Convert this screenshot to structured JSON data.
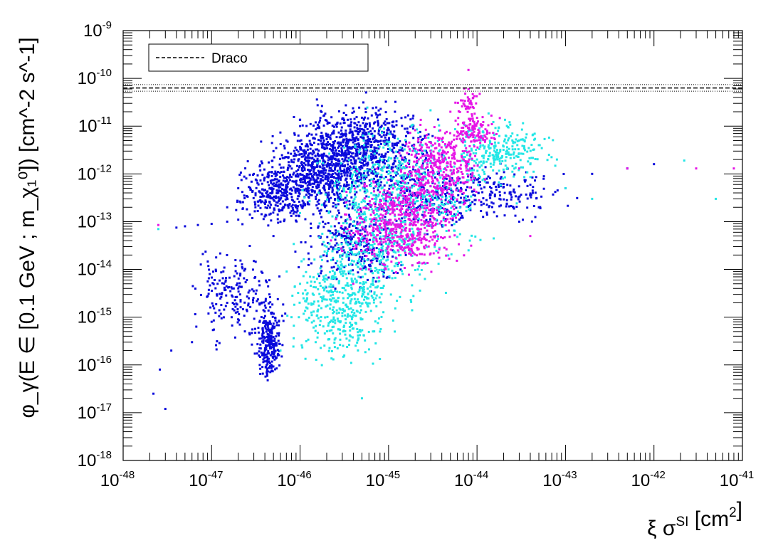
{
  "chart_data": {
    "type": "scatter",
    "xscale": "log",
    "yscale": "log",
    "xlim": [
      1e-48,
      1e-41
    ],
    "ylim": [
      1e-18,
      1e-09
    ],
    "grid": false,
    "legend_position": "top-left",
    "xlabel": "ξ σ^SI [cm^2]",
    "ylabel": "φ_γ(E ∈ [0.1 GeV ; m_χ₁⁰]) [cm^-2 s^-1]",
    "x_ticks": [
      {
        "base": "10",
        "exp": "-48"
      },
      {
        "base": "10",
        "exp": "-47"
      },
      {
        "base": "10",
        "exp": "-46"
      },
      {
        "base": "10",
        "exp": "-45"
      },
      {
        "base": "10",
        "exp": "-44"
      },
      {
        "base": "10",
        "exp": "-43"
      },
      {
        "base": "10",
        "exp": "-42"
      },
      {
        "base": "10",
        "exp": "-41"
      }
    ],
    "y_ticks": [
      {
        "base": "10",
        "exp": "-18"
      },
      {
        "base": "10",
        "exp": "-17"
      },
      {
        "base": "10",
        "exp": "-16"
      },
      {
        "base": "10",
        "exp": "-15"
      },
      {
        "base": "10",
        "exp": "-14"
      },
      {
        "base": "10",
        "exp": "-13"
      },
      {
        "base": "10",
        "exp": "-12"
      },
      {
        "base": "10",
        "exp": "-11"
      },
      {
        "base": "10",
        "exp": "-10"
      },
      {
        "base": "10",
        "exp": "-9"
      }
    ],
    "reference_lines": [
      {
        "name": "Draco",
        "y": 6.3e-11,
        "style": "dashed",
        "band": [
          5.4e-11,
          7.4e-11
        ]
      }
    ],
    "series": [
      {
        "color": "#0a0adc",
        "points": [
          [
            2.2e-48,
            2.5e-17
          ],
          [
            2.6e-48,
            8e-17
          ],
          [
            3e-48,
            1.2e-17
          ],
          [
            3.5e-48,
            2e-16
          ],
          [
            4e-48,
            7.5e-14
          ],
          [
            5e-48,
            8e-14
          ],
          [
            7e-48,
            8.5e-14
          ],
          [
            1e-47,
            9e-14
          ],
          [
            1.5e-47,
            1e-13
          ],
          [
            2e-47,
            1.1e-13
          ],
          [
            6e-48,
            3e-16
          ],
          [
            1e-47,
            8e-16
          ],
          [
            1.5e-47,
            2e-15
          ],
          [
            2e-47,
            4e-15
          ],
          [
            2.5e-47,
            6e-15
          ],
          [
            3e-47,
            1.5e-14
          ],
          [
            1.5e-47,
            2e-13
          ],
          [
            2e-47,
            5e-13
          ],
          [
            3e-47,
            1e-12
          ],
          [
            5e-47,
            3e-12
          ],
          [
            7e-47,
            5e-12
          ],
          [
            1e-46,
            1e-11
          ],
          [
            1.5e-46,
            1.2e-11
          ],
          [
            2e-46,
            1.3e-11
          ],
          [
            3e-46,
            1.4e-11
          ],
          [
            5e-46,
            1.5e-11
          ],
          [
            7e-46,
            1.2e-11
          ],
          [
            3.5e-47,
            1e-16
          ],
          [
            4e-47,
            2e-16
          ],
          [
            4.5e-47,
            3e-15
          ],
          [
            5e-47,
            5e-14
          ],
          [
            6e-47,
            1e-13
          ],
          [
            3e-44,
            1e-13
          ],
          [
            5e-44,
            2e-13
          ],
          [
            1e-43,
            5e-13
          ],
          [
            2e-43,
            1e-12
          ],
          [
            5e-43,
            1.3e-12
          ],
          [
            1e-42,
            1.6e-12
          ]
        ]
      },
      {
        "color": "#22e6e6",
        "points": [
          [
            2.5e-48,
            7e-14
          ],
          [
            6e-47,
            2e-16
          ],
          [
            8e-47,
            1e-15
          ],
          [
            1e-46,
            5e-15
          ],
          [
            2e-46,
            3e-14
          ],
          [
            4e-46,
            1e-13
          ],
          [
            6e-46,
            3e-14
          ],
          [
            1e-45,
            1e-14
          ],
          [
            1e-45,
            1e-12
          ],
          [
            2e-45,
            3e-12
          ],
          [
            4e-45,
            5e-12
          ],
          [
            8e-45,
            8e-12
          ],
          [
            1e-44,
            2e-12
          ],
          [
            3e-44,
            5e-12
          ],
          [
            5e-44,
            4e-12
          ],
          [
            8e-44,
            2e-12
          ],
          [
            1e-43,
            5e-13
          ],
          [
            2e-43,
            3e-13
          ],
          [
            5e-42,
            3e-13
          ],
          [
            2.2e-42,
            1.9e-12
          ],
          [
            5e-46,
            2e-17
          ],
          [
            8e-46,
            5e-16
          ],
          [
            1.5e-46,
            3e-16
          ]
        ]
      },
      {
        "color": "#e614e6",
        "points": [
          [
            2.5e-48,
            8.5e-14
          ],
          [
            4e-46,
            5e-15
          ],
          [
            6e-46,
            1e-14
          ],
          [
            1e-45,
            3e-14
          ],
          [
            2e-45,
            1e-13
          ],
          [
            3e-45,
            3e-13
          ],
          [
            5e-45,
            8e-13
          ],
          [
            7e-45,
            2e-12
          ],
          [
            1e-44,
            5e-12
          ],
          [
            1.3e-44,
            8e-12
          ],
          [
            8e-45,
            6e-11
          ],
          [
            8e-45,
            1.5e-10
          ],
          [
            5e-45,
            2e-11
          ],
          [
            3e-44,
            1.3e-12
          ],
          [
            5e-43,
            1.3e-12
          ],
          [
            3e-42,
            1.3e-12
          ],
          [
            8e-42,
            1.3e-12
          ],
          [
            4e-44,
            5e-14
          ]
        ]
      }
    ]
  }
}
